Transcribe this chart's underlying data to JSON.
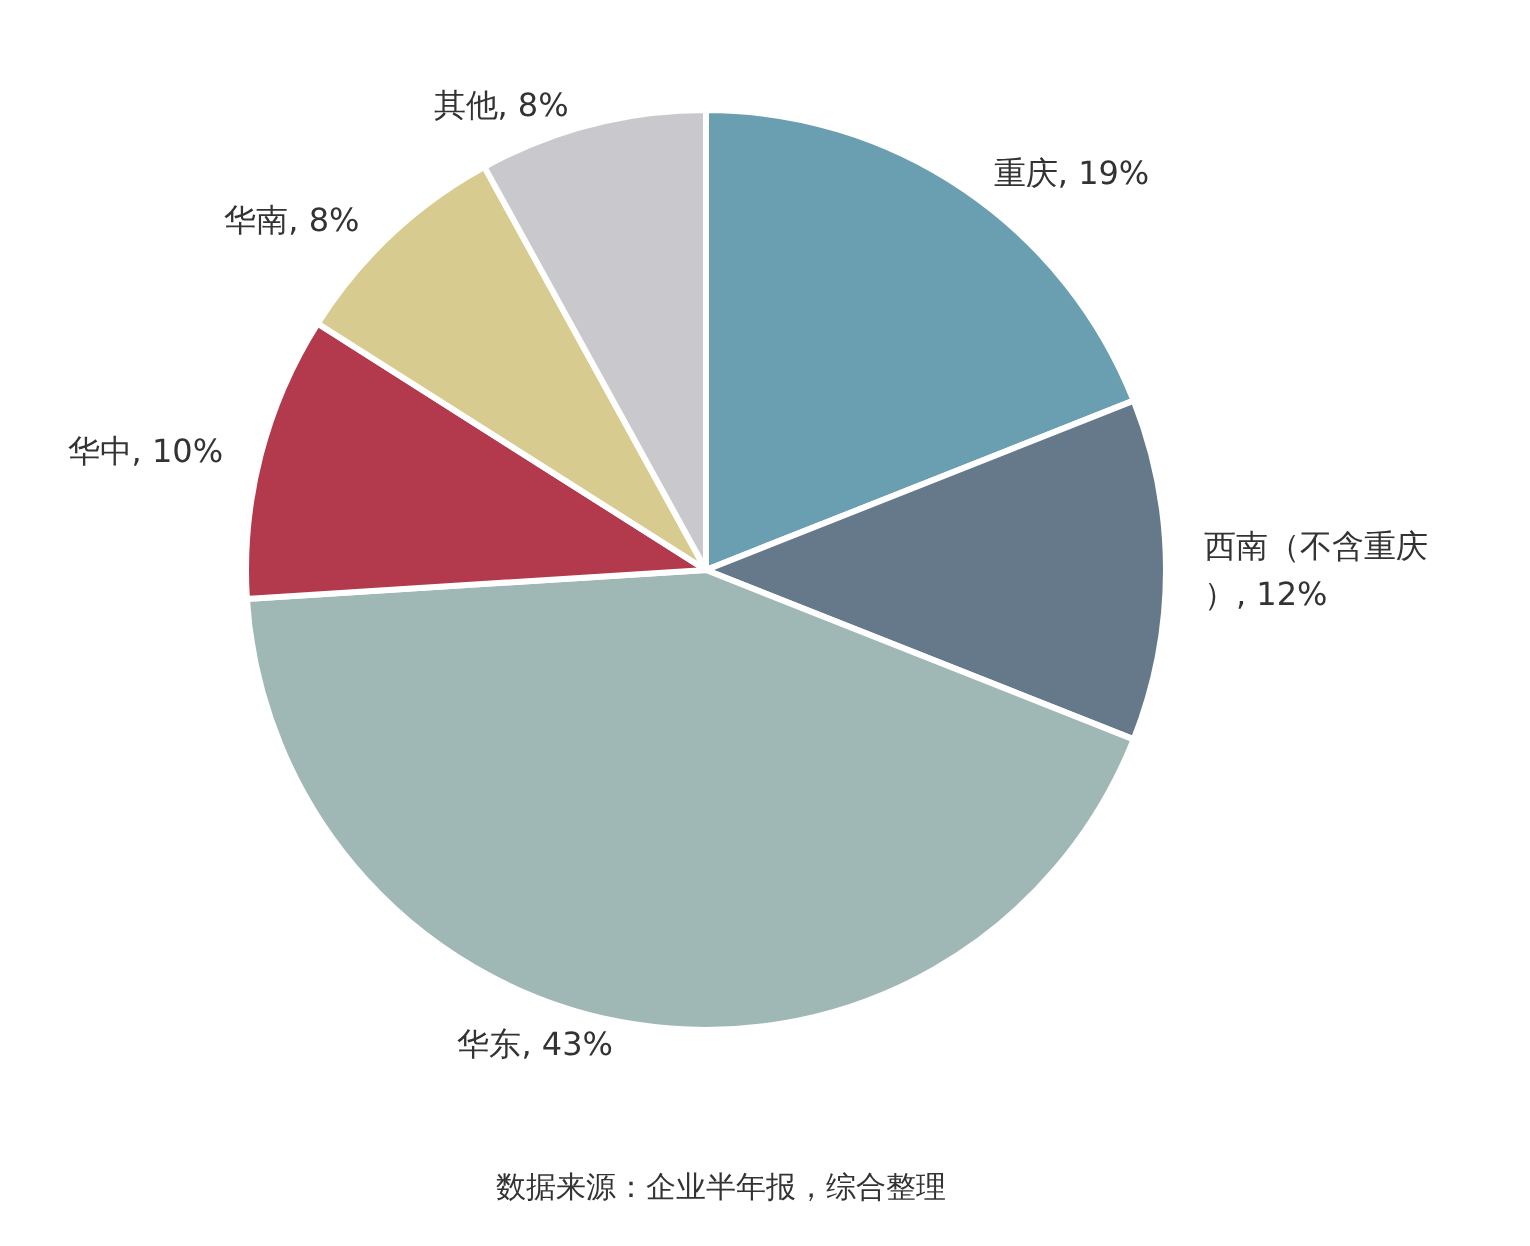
{
  "chart_data": {
    "type": "pie",
    "categories": [
      "重庆",
      "西南（不含重庆）",
      "华东",
      "华中",
      "华南",
      "其他"
    ],
    "values": [
      19,
      12,
      43,
      10,
      8,
      8
    ],
    "value_labels": [
      "19%",
      "12%",
      "43%",
      "10%",
      "8%",
      "8%"
    ],
    "colors": [
      "#6a9fb1",
      "#65798a",
      "#a0b8b5",
      "#b33a4c",
      "#d8cb8f",
      "#c9c8cc"
    ],
    "annotations": [
      "数据来源：企业半年报，综合整理"
    ],
    "legend": false
  }
}
